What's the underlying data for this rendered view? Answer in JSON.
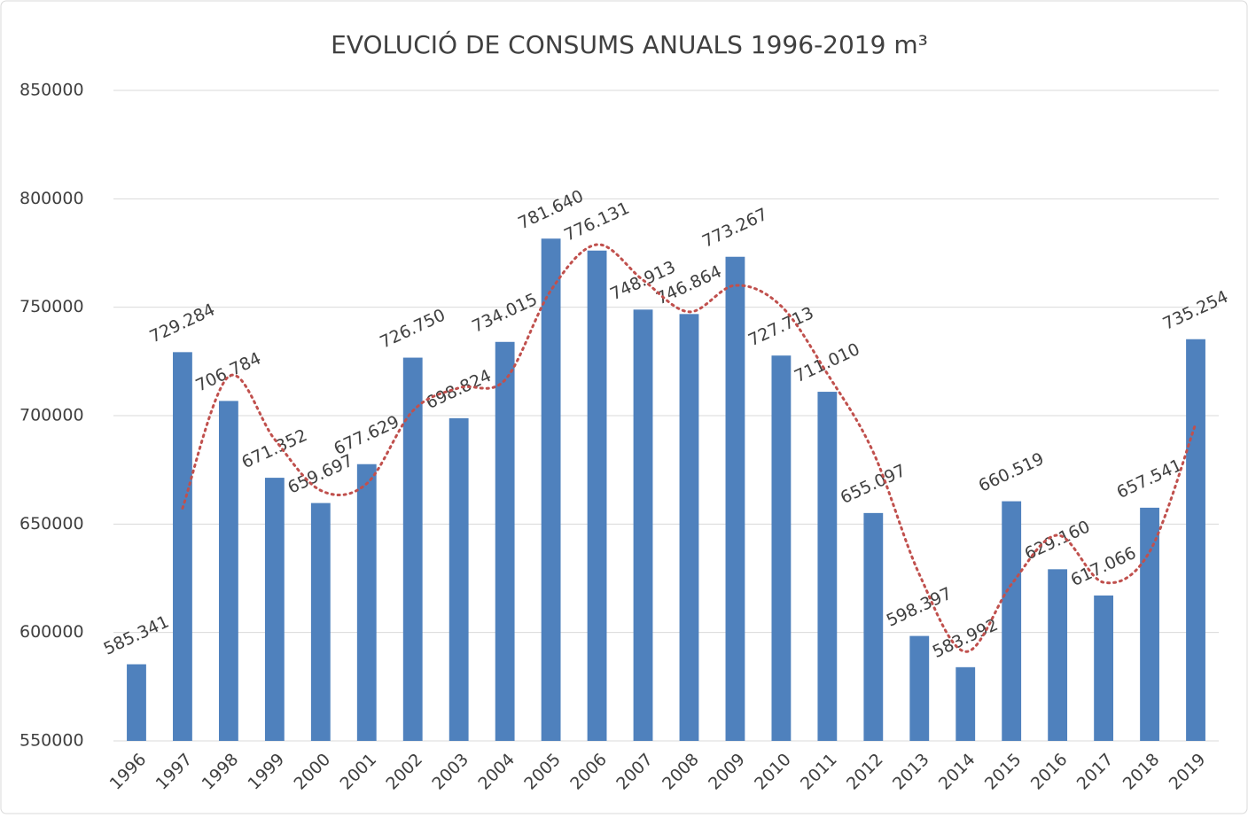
{
  "chart_data": {
    "type": "bar",
    "title": "EVOLUCIÓ DE CONSUMS ANUALS 1996-2019 m³",
    "categories": [
      "1996",
      "1997",
      "1998",
      "1999",
      "2000",
      "2001",
      "2002",
      "2003",
      "2004",
      "2005",
      "2006",
      "2007",
      "2008",
      "2009",
      "2010",
      "2011",
      "2012",
      "2013",
      "2014",
      "2015",
      "2016",
      "2017",
      "2018",
      "2019"
    ],
    "values": [
      585341,
      729284,
      706784,
      671352,
      659697,
      677629,
      726750,
      698824,
      734015,
      781640,
      776131,
      748913,
      746864,
      773267,
      727713,
      711010,
      655097,
      598397,
      583992,
      660519,
      629160,
      617066,
      657541,
      735254
    ],
    "value_labels": [
      "585.341",
      "729.284",
      "706.784",
      "671.352",
      "659.697",
      "677.629",
      "726.750",
      "698.824",
      "734.015",
      "781.640",
      "776.131",
      "748.913",
      "746.864",
      "773.267",
      "727.713",
      "711.010",
      "655.097",
      "598.397",
      "583.992",
      "660.519",
      "629.160",
      "617.066",
      "657.541",
      "735.254"
    ],
    "color": "#4f81bd",
    "trendline": {
      "color": "#c0504d",
      "values": [
        null,
        657312.5,
        718034,
        689068,
        665524.5,
        668663,
        702189.5,
        712787,
        716419.5,
        757827.5,
        778885.5,
        762522,
        747888.5,
        760065.5,
        750490,
        719361.5,
        683053.5,
        626747,
        591194.5,
        622255.5,
        644839.5,
        623113,
        637303.5,
        696397.5
      ]
    },
    "ylim": [
      550000,
      850000
    ],
    "yticks": [
      550000,
      600000,
      650000,
      700000,
      750000,
      800000,
      850000
    ],
    "grid": true
  }
}
